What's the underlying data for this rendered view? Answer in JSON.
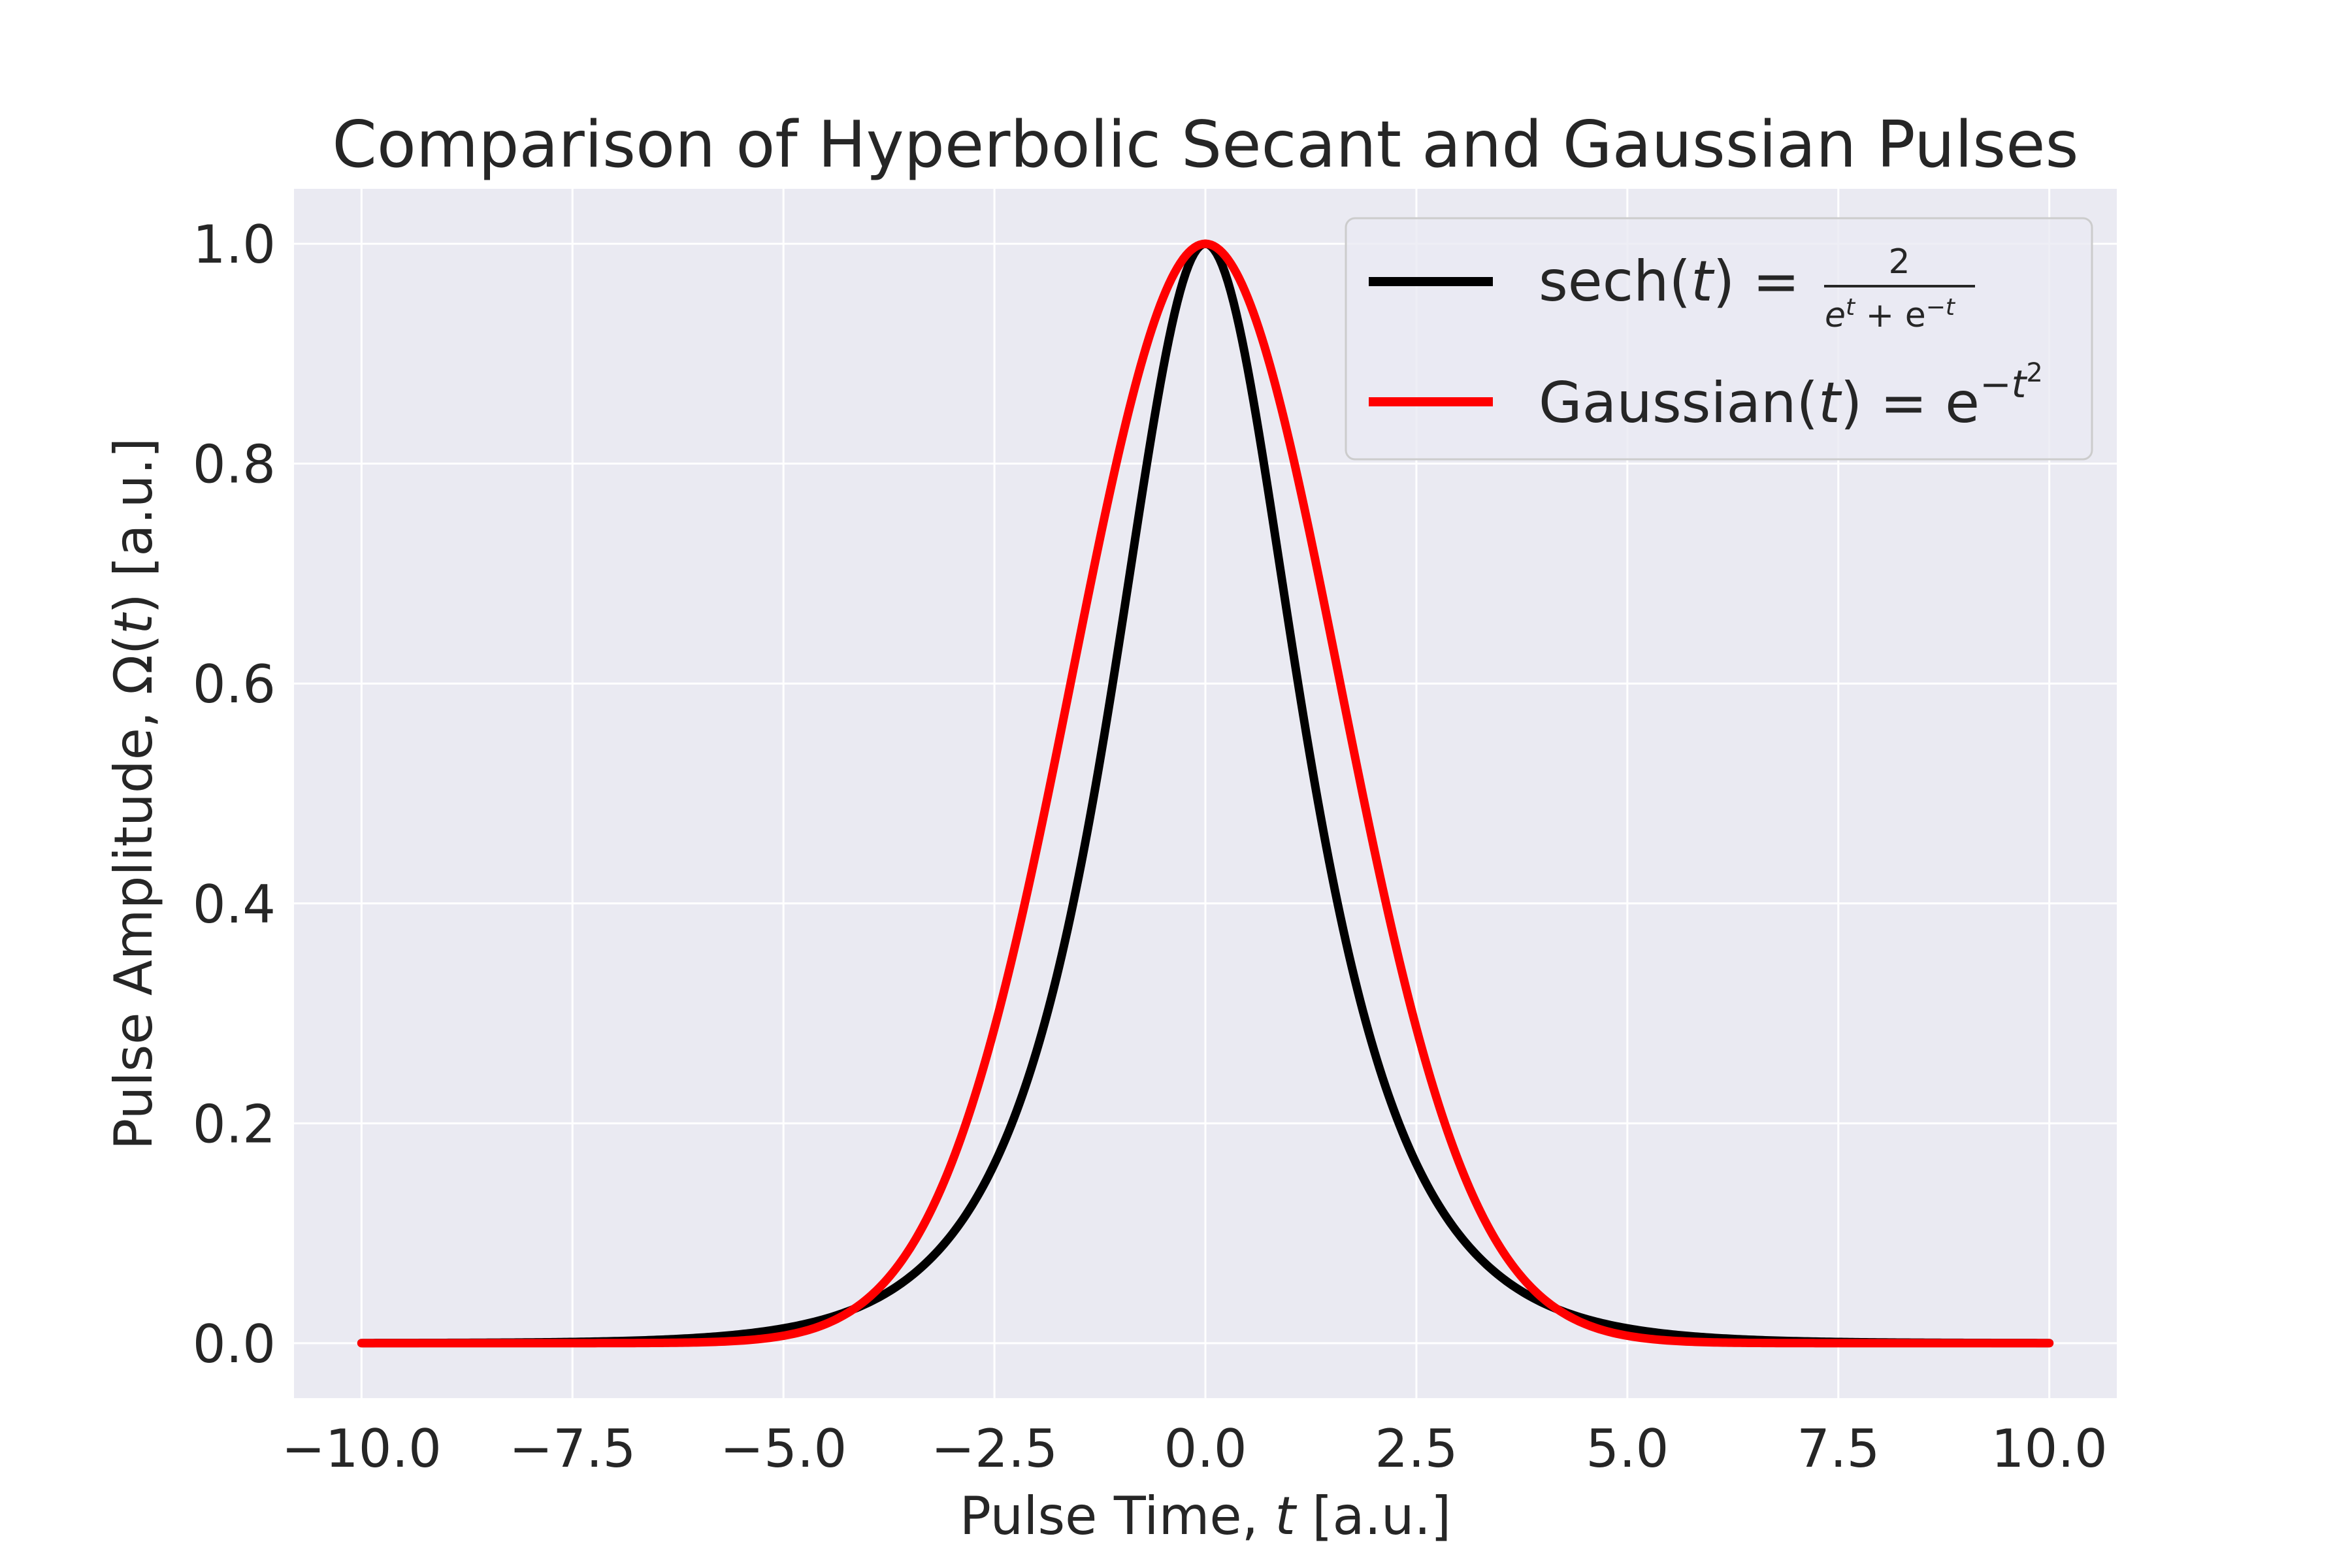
{
  "chart_data": {
    "type": "line",
    "title": "Comparison of Hyperbolic Secant and Gaussian Pulses",
    "xlabel": {
      "main": "Pulse Time, ",
      "var": "t",
      "unit": " [a.u.]"
    },
    "ylabel": {
      "main": "Pulse Amplitude, Ω(",
      "var": "t",
      "unit": ") [a.u.]"
    },
    "xlim": [
      -10.8,
      10.8
    ],
    "ylim": [
      -0.05,
      1.05
    ],
    "x_ticks": [
      -10.0,
      -7.5,
      -5.0,
      -2.5,
      0.0,
      2.5,
      5.0,
      7.5,
      10.0
    ],
    "x_tick_labels": [
      "−10.0",
      "−7.5",
      "−5.0",
      "−2.5",
      "0.0",
      "2.5",
      "5.0",
      "7.5",
      "10.0"
    ],
    "y_ticks": [
      0.0,
      0.2,
      0.4,
      0.6,
      0.8,
      1.0
    ],
    "y_tick_labels": [
      "0.0",
      "0.2",
      "0.4",
      "0.6",
      "0.8",
      "1.0"
    ],
    "grid": true,
    "legend_position": "top-right",
    "x_range": [
      -10,
      10
    ],
    "series": [
      {
        "id": "sech",
        "color": "#000000",
        "function": "sech",
        "legend": {
          "name": "sech(",
          "var": "t",
          "eq": ") = ",
          "numerator": "2",
          "denominator": "e",
          "den_sup1": "t",
          "den_mid": " + e",
          "den_sup2": "−t"
        },
        "x": [
          -10,
          -7.5,
          -5,
          -4,
          -3,
          -2.5,
          -2,
          -1.5,
          -1,
          -0.5,
          0,
          0.5,
          1,
          1.5,
          2,
          2.5,
          3,
          4,
          5,
          7.5,
          10
        ],
        "y": [
          0.0001,
          0.0011,
          0.0135,
          0.0366,
          0.0993,
          0.1631,
          0.2658,
          0.4251,
          0.6481,
          0.8868,
          1.0,
          0.8868,
          0.6481,
          0.4251,
          0.2658,
          0.1631,
          0.0993,
          0.0366,
          0.0135,
          0.0011,
          0.0001
        ]
      },
      {
        "id": "gaussian",
        "color": "#ff0000",
        "function": "gaussian",
        "legend": {
          "name": "Gaussian(",
          "var": "t",
          "eq": ") = e",
          "sup": "−t",
          "sup2": "2"
        },
        "x": [
          -10,
          -7.5,
          -5,
          -4,
          -3,
          -2.5,
          -2,
          -1.5,
          -1,
          -0.5,
          0,
          0.5,
          1,
          1.5,
          2,
          2.5,
          3,
          4,
          5,
          7.5,
          10
        ],
        "y": [
          0.0,
          0.0,
          0.0019,
          0.0183,
          0.1054,
          0.2096,
          0.3679,
          0.5698,
          0.7788,
          0.9394,
          1.0,
          0.9394,
          0.7788,
          0.5698,
          0.3679,
          0.2096,
          0.1054,
          0.0183,
          0.0019,
          0.0,
          0.0
        ]
      }
    ],
    "colors": {
      "axes_bg": "#eaeaf2",
      "grid": "#ffffff",
      "text": "#262626",
      "legend_bg": "#eaeaf2",
      "legend_border": "#cccccc"
    }
  }
}
